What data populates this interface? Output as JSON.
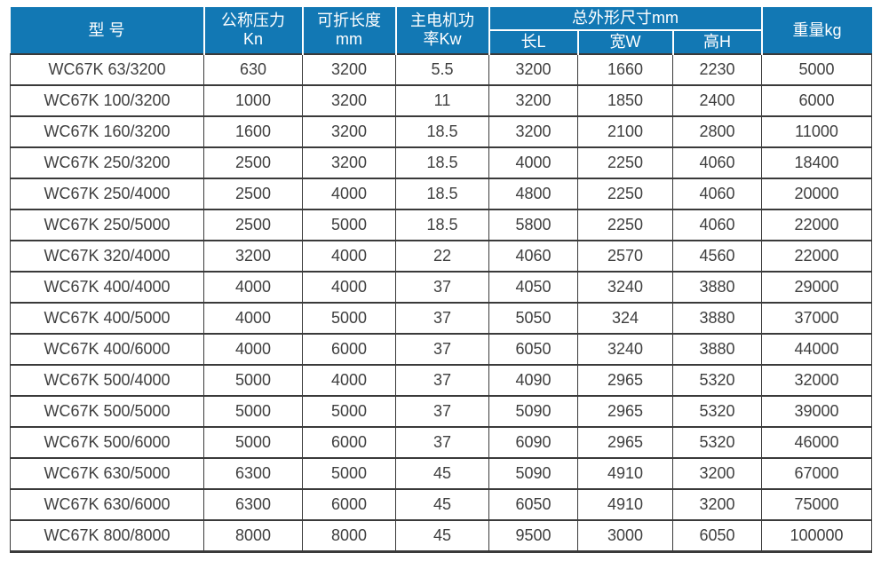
{
  "colors": {
    "header_bg": "#1278b4",
    "header_text": "#ffffff",
    "body_text": "#3f3f3f",
    "grid": "#3a3a3a"
  },
  "table": {
    "header": {
      "model": "型 号",
      "pressure_line1": "公称压力",
      "pressure_line2": "Kn",
      "fold_length_line1": "可折长度",
      "fold_length_line2": "mm",
      "motor_power_line1": "主电机功",
      "motor_power_line2": "率Kw",
      "overall_dimensions": "总外形尺寸mm",
      "dim_length": "长L",
      "dim_width": "宽W",
      "dim_height": "高H",
      "weight": "重量kg"
    },
    "rows": [
      [
        "WC67K 63/3200",
        "630",
        "3200",
        "5.5",
        "3200",
        "1660",
        "2230",
        "5000"
      ],
      [
        "WC67K 100/3200",
        "1000",
        "3200",
        "11",
        "3200",
        "1850",
        "2400",
        "6000"
      ],
      [
        "WC67K 160/3200",
        "1600",
        "3200",
        "18.5",
        "3200",
        "2100",
        "2800",
        "11000"
      ],
      [
        "WC67K 250/3200",
        "2500",
        "3200",
        "18.5",
        "4000",
        "2250",
        "4060",
        "18400"
      ],
      [
        "WC67K 250/4000",
        "2500",
        "4000",
        "18.5",
        "4800",
        "2250",
        "4060",
        "20000"
      ],
      [
        "WC67K 250/5000",
        "2500",
        "5000",
        "18.5",
        "5800",
        "2250",
        "4060",
        "22000"
      ],
      [
        "WC67K 320/4000",
        "3200",
        "4000",
        "22",
        "4060",
        "2570",
        "4560",
        "22000"
      ],
      [
        "WC67K 400/4000",
        "4000",
        "4000",
        "37",
        "4050",
        "3240",
        "3880",
        "29000"
      ],
      [
        "WC67K 400/5000",
        "4000",
        "5000",
        "37",
        "5050",
        "324",
        "3880",
        "37000"
      ],
      [
        "WC67K 400/6000",
        "4000",
        "6000",
        "37",
        "6050",
        "3240",
        "3880",
        "44000"
      ],
      [
        "WC67K 500/4000",
        "5000",
        "4000",
        "37",
        "4090",
        "2965",
        "5320",
        "32000"
      ],
      [
        "WC67K 500/5000",
        "5000",
        "5000",
        "37",
        "5090",
        "2965",
        "5320",
        "39000"
      ],
      [
        "WC67K 500/6000",
        "5000",
        "6000",
        "37",
        "6090",
        "2965",
        "5320",
        "46000"
      ],
      [
        "WC67K 630/5000",
        "6300",
        "5000",
        "45",
        "5090",
        "4910",
        "3200",
        "67000"
      ],
      [
        "WC67K 630/6000",
        "6300",
        "6000",
        "45",
        "6050",
        "4910",
        "3200",
        "75000"
      ],
      [
        "WC67K 800/8000",
        "8000",
        "8000",
        "45",
        "9500",
        "3000",
        "6050",
        "100000"
      ]
    ]
  }
}
